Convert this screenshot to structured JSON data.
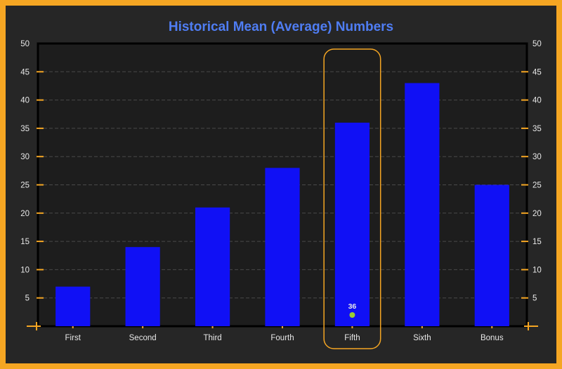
{
  "chart_data": {
    "type": "bar",
    "title": "Historical Mean (Average) Numbers",
    "categories": [
      "First",
      "Second",
      "Third",
      "Fourth",
      "Fifth",
      "Sixth",
      "Bonus"
    ],
    "values": [
      7,
      14,
      21,
      28,
      36,
      43,
      25
    ],
    "ylim": [
      0,
      50
    ],
    "yticks": [
      5,
      10,
      15,
      20,
      25,
      30,
      35,
      40,
      45,
      50
    ],
    "grid": true,
    "bar_color": "#1010f5",
    "highlight": {
      "category": "Fifth",
      "value_label": "36",
      "marker_color": "#9acd32",
      "outline_color": "#f5a623"
    }
  },
  "colors": {
    "frame": "#f5a623",
    "title": "#4f7df3",
    "plot_bg": "#1d1d1d",
    "tick_mark": "#f5a623"
  }
}
